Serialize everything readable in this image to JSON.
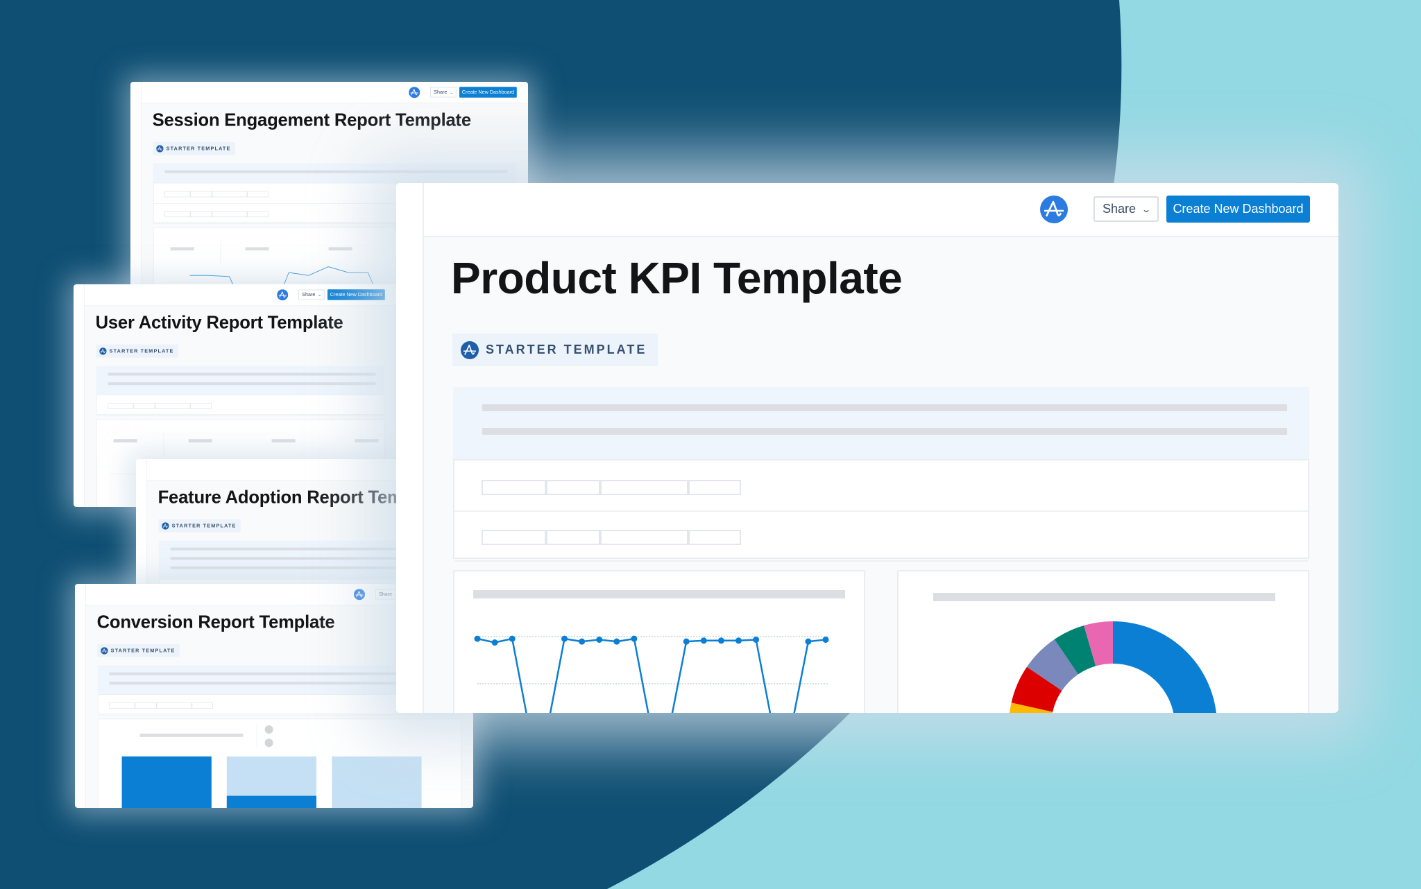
{
  "header": {
    "share_label": "Share",
    "create_label": "Create New Dashboard"
  },
  "badge_label": "STARTER TEMPLATE",
  "icons": {
    "logo": "amplitude-logo-icon",
    "share_chevron": "chevron-down-icon",
    "badge_icon": "amplitude-logo-icon"
  },
  "cards": [
    {
      "title": "Session Engagement Report Template"
    },
    {
      "title": "User Activity Report Template"
    },
    {
      "title": "Feature Adoption Report Template"
    },
    {
      "title": "Conversion Report Template"
    }
  ],
  "main": {
    "title": "Product KPI Template"
  },
  "colors": {
    "background_dark": "#0f4f73",
    "background_light": "#92d9e3",
    "accent_blue": "#0b7fd4",
    "logo_blue": "#2c7be0",
    "badge_bg": "#edf3fb",
    "placeholder_grey": "#dcdee3"
  },
  "chart_data": [
    {
      "type": "line",
      "chart": "main-line",
      "values": [
        0.97,
        0.93,
        0.97,
        0,
        0,
        0.97,
        0.94,
        0.96,
        0.94,
        0.97,
        0,
        0,
        0.94,
        0.95,
        0.95,
        0.95,
        0.96,
        0,
        0,
        0.94,
        0.96
      ],
      "gridlines": [
        0.5,
        1.0
      ],
      "color": "#0b7fd4"
    },
    {
      "type": "pie",
      "chart": "main-donut",
      "values": [
        71.5,
        7,
        6,
        6,
        5,
        4.5
      ],
      "colors": [
        "#0b7fd4",
        "#ffb900",
        "#dd0000",
        "#7a88bb",
        "#008272",
        "#e867b0"
      ]
    },
    {
      "type": "line",
      "chart": "session-line",
      "values": [
        0.8,
        0.8,
        0.78,
        0,
        0,
        0.85,
        0.8,
        0.95,
        0.85,
        0.85,
        0.05,
        0,
        0.8,
        0.82,
        0.82,
        0.8
      ],
      "color": "#2b8fdf"
    },
    {
      "type": "bar",
      "chart": "conversion-bars",
      "values": [
        100,
        55,
        5
      ],
      "ylim": [
        0,
        100
      ],
      "colors": [
        "#0b7fd4",
        "#c5e0f4"
      ]
    }
  ]
}
